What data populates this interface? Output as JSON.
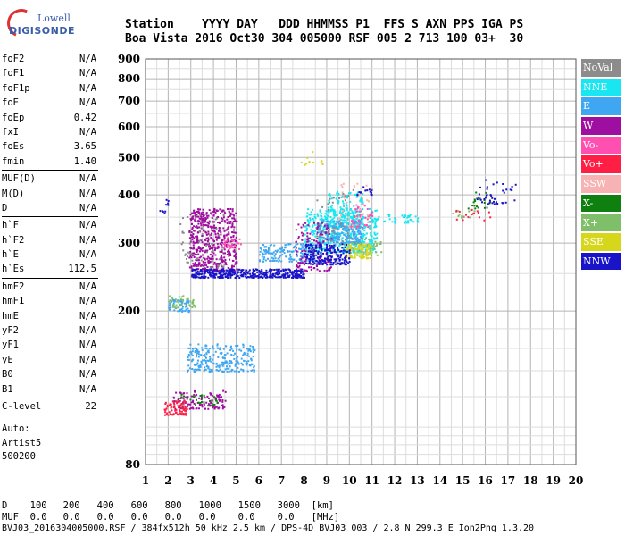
{
  "logo": {
    "line1": "Lowell",
    "line2": "DIGISONDE"
  },
  "header": {
    "labels": [
      "Station",
      "YYYY",
      "DAY",
      "DDD",
      "HHMMSS",
      "P1",
      "FFS",
      "S",
      "AXN",
      "PPS",
      "IGA",
      "PS"
    ],
    "values": [
      "Boa Vista",
      "2016",
      "Oct30",
      "304",
      "005000",
      "RSF",
      "005",
      "2",
      "713",
      "100",
      "03+",
      "30"
    ]
  },
  "params": {
    "group1": [
      {
        "label": "foF2",
        "value": "N/A"
      },
      {
        "label": "foF1",
        "value": "N/A"
      },
      {
        "label": "foF1p",
        "value": "N/A"
      },
      {
        "label": "foE",
        "value": "N/A"
      },
      {
        "label": "foEp",
        "value": "0.42"
      },
      {
        "label": "fxI",
        "value": "N/A"
      },
      {
        "label": "foEs",
        "value": "3.65"
      },
      {
        "label": "fmin",
        "value": "1.40"
      }
    ],
    "group2": [
      {
        "label": "MUF(D)",
        "value": "N/A"
      },
      {
        "label": "M(D)",
        "value": "N/A"
      },
      {
        "label": "D",
        "value": "N/A"
      }
    ],
    "group3": [
      {
        "label": "h`F",
        "value": "N/A"
      },
      {
        "label": "h`F2",
        "value": "N/A"
      },
      {
        "label": "h`E",
        "value": "N/A"
      },
      {
        "label": "h`Es",
        "value": "112.5"
      }
    ],
    "group4": [
      {
        "label": "hmF2",
        "value": "N/A"
      },
      {
        "label": "hmF1",
        "value": "N/A"
      },
      {
        "label": "hmE",
        "value": "N/A"
      },
      {
        "label": "yF2",
        "value": "N/A"
      },
      {
        "label": "yF1",
        "value": "N/A"
      },
      {
        "label": "yE",
        "value": "N/A"
      },
      {
        "label": "B0",
        "value": "N/A"
      },
      {
        "label": "B1",
        "value": "N/A"
      }
    ],
    "clevel": {
      "label": "C-level",
      "value": "22"
    },
    "auto_label": "Auto:",
    "artist": "Artist5",
    "artist_code": "500200"
  },
  "legend": [
    {
      "label": "NoVal",
      "color": "#8c8c8c"
    },
    {
      "label": "NNE",
      "color": "#19e6f0"
    },
    {
      "label": "E",
      "color": "#3fa7f2"
    },
    {
      "label": "W",
      "color": "#9e0ea0"
    },
    {
      "label": "Vo-",
      "color": "#ff4fb0"
    },
    {
      "label": "Vo+",
      "color": "#ff1f45"
    },
    {
      "label": "SSW",
      "color": "#f7b3b3"
    },
    {
      "label": "X-",
      "color": "#0f7f0f"
    },
    {
      "label": "X+",
      "color": "#7fbf6a"
    },
    {
      "label": "SSE",
      "color": "#d6d61a"
    },
    {
      "label": "NNW",
      "color": "#1a14c8"
    }
  ],
  "bottom": {
    "d_label": "D",
    "d_values": [
      "100",
      "200",
      "400",
      "600",
      "800",
      "1000",
      "1500",
      "3000",
      "[km]"
    ],
    "muf_label": "MUF",
    "muf_values": [
      "0.0",
      "0.0",
      "0.0",
      "0.0",
      "0.0",
      "0.0",
      "0.0",
      "0.0",
      "[MHz]"
    ],
    "footer": "BVJ03_2016304005000.RSF / 384fx512h 50 kHz 2.5 km / DPS-4D BVJ03 003 / 2.8 N 299.3 E Ion2Png 1.3.20"
  },
  "chart_data": {
    "type": "scatter",
    "title": "",
    "xlabel": "",
    "ylabel": "",
    "xlim": [
      1,
      20
    ],
    "ylim": [
      80,
      900
    ],
    "x_ticks": [
      1,
      2,
      3,
      4,
      5,
      6,
      7,
      8,
      9,
      10,
      11,
      12,
      13,
      14,
      15,
      16,
      17,
      18,
      19,
      20
    ],
    "y_ticks": [
      80,
      200,
      300,
      400,
      500,
      600,
      700,
      800,
      900
    ],
    "y_scale": "log",
    "grid": true,
    "legend_position": "right",
    "series": [
      {
        "name": "NNE",
        "color": "#19e6f0",
        "clusters": [
          {
            "x": [
              8.0,
              11.2
            ],
            "y": [
              285,
              370
            ],
            "n": 520
          },
          {
            "x": [
              9.0,
              10.6
            ],
            "y": [
              330,
              410
            ],
            "n": 160
          },
          {
            "x": [
              11.0,
              13.0
            ],
            "y": [
              340,
              360
            ],
            "n": 40
          }
        ]
      },
      {
        "name": "E",
        "color": "#3fa7f2",
        "clusters": [
          {
            "x": [
              2.8,
              5.8
            ],
            "y": [
              140,
              165
            ],
            "n": 260
          },
          {
            "x": [
              6.0,
              8.5
            ],
            "y": [
              270,
              300
            ],
            "n": 160
          },
          {
            "x": [
              8.5,
              10.5
            ],
            "y": [
              300,
              345
            ],
            "n": 200
          },
          {
            "x": [
              2.0,
              2.9
            ],
            "y": [
              200,
              215
            ],
            "n": 60
          }
        ]
      },
      {
        "name": "W",
        "color": "#9e0ea0",
        "clusters": [
          {
            "x": [
              2.9,
              5.0
            ],
            "y": [
              255,
              370
            ],
            "n": 520
          },
          {
            "x": [
              7.6,
              9.2
            ],
            "y": [
              255,
              340
            ],
            "n": 150
          },
          {
            "x": [
              2.2,
              4.5
            ],
            "y": [
              112,
              125
            ],
            "n": 120
          }
        ]
      },
      {
        "name": "Vo-",
        "color": "#ff4fb0",
        "clusters": [
          {
            "x": [
              4.4,
              5.2
            ],
            "y": [
              290,
              310
            ],
            "n": 30
          },
          {
            "x": [
              10.0,
              11.0
            ],
            "y": [
              330,
              380
            ],
            "n": 40
          }
        ]
      },
      {
        "name": "Vo+",
        "color": "#ff1f45",
        "clusters": [
          {
            "x": [
              1.8,
              2.8
            ],
            "y": [
              108,
              118
            ],
            "n": 80
          },
          {
            "x": [
              14.6,
              16.3
            ],
            "y": [
              345,
              370
            ],
            "n": 20
          }
        ]
      },
      {
        "name": "SSW",
        "color": "#f7b3b3",
        "clusters": [
          {
            "x": [
              9.5,
              11.0
            ],
            "y": [
              330,
              430
            ],
            "n": 40
          }
        ]
      },
      {
        "name": "X-",
        "color": "#0f7f0f",
        "clusters": [
          {
            "x": [
              15.2,
              16.2
            ],
            "y": [
              370,
              410
            ],
            "n": 20
          },
          {
            "x": [
              2.5,
              4.2
            ],
            "y": [
              114,
              122
            ],
            "n": 30
          }
        ]
      },
      {
        "name": "X+",
        "color": "#7fbf6a",
        "clusters": [
          {
            "x": [
              10.0,
              11.4
            ],
            "y": [
              280,
              310
            ],
            "n": 50
          },
          {
            "x": [
              2.0,
              3.2
            ],
            "y": [
              205,
              220
            ],
            "n": 40
          },
          {
            "x": [
              14.5,
              15.5
            ],
            "y": [
              350,
              375
            ],
            "n": 10
          }
        ]
      },
      {
        "name": "SSE",
        "color": "#d6d61a",
        "clusters": [
          {
            "x": [
              9.8,
              11.0
            ],
            "y": [
              275,
              300
            ],
            "n": 100
          },
          {
            "x": [
              7.8,
              8.8
            ],
            "y": [
              480,
              520
            ],
            "n": 10
          }
        ]
      },
      {
        "name": "NNW",
        "color": "#1a14c8",
        "clusters": [
          {
            "x": [
              3.0,
              8.0
            ],
            "y": [
              245,
              258
            ],
            "n": 420
          },
          {
            "x": [
              8.0,
              10.0
            ],
            "y": [
              265,
              300
            ],
            "n": 200
          },
          {
            "x": [
              15.6,
              17.4
            ],
            "y": [
              380,
              440
            ],
            "n": 40
          },
          {
            "x": [
              1.6,
              2.0
            ],
            "y": [
              360,
              400
            ],
            "n": 10
          },
          {
            "x": [
              10.3,
              11.0
            ],
            "y": [
              400,
              425
            ],
            "n": 15
          }
        ]
      },
      {
        "name": "NoVal",
        "color": "#8c8c8c",
        "clusters": [
          {
            "x": [
              2.5,
              4.5
            ],
            "y": [
              260,
              360
            ],
            "n": 60
          },
          {
            "x": [
              8.5,
              10.5
            ],
            "y": [
              300,
              420
            ],
            "n": 40
          }
        ]
      }
    ]
  }
}
